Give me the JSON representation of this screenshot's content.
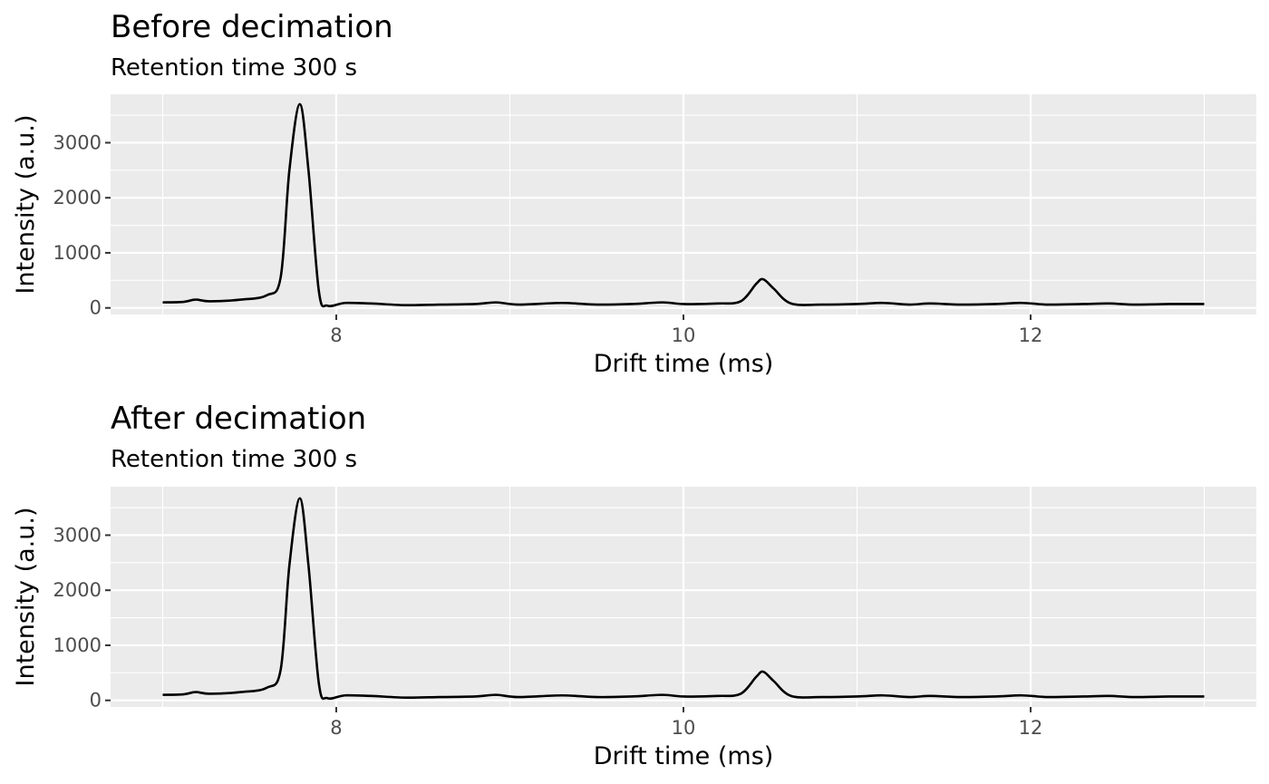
{
  "chart_data": [
    {
      "type": "line",
      "title": "Before decimation",
      "subtitle": "Retention time 300 s",
      "xlabel": "Drift time (ms)",
      "ylabel": "Intensity (a.u.)",
      "xlim": [
        6.7,
        13.3
      ],
      "ylim": [
        -120,
        3880
      ],
      "x_ticks": [
        8,
        10,
        12
      ],
      "y_ticks": [
        0,
        1000,
        2000,
        3000
      ],
      "x_tick_labels": [
        "8",
        "10",
        "12"
      ],
      "y_tick_labels": [
        "0",
        "1000",
        "2000",
        "3000"
      ],
      "grid": true,
      "series": [
        {
          "color": "#000000",
          "x": [
            7.0,
            7.12,
            7.19,
            7.27,
            7.45,
            7.6,
            7.68,
            7.73,
            7.79,
            7.84,
            7.9,
            7.95,
            8.05,
            8.2,
            8.4,
            8.6,
            8.8,
            8.92,
            9.05,
            9.3,
            9.5,
            9.7,
            9.88,
            10.0,
            10.2,
            10.33,
            10.42,
            10.46,
            10.52,
            10.62,
            10.8,
            11.0,
            11.15,
            11.3,
            11.42,
            11.6,
            11.8,
            11.95,
            12.1,
            12.3,
            12.45,
            12.6,
            12.8,
            13.0
          ],
          "y": [
            100,
            110,
            150,
            120,
            150,
            230,
            560,
            2500,
            3700,
            2500,
            300,
            40,
            90,
            80,
            50,
            60,
            70,
            100,
            60,
            90,
            60,
            70,
            100,
            70,
            80,
            120,
            440,
            520,
            350,
            80,
            60,
            70,
            90,
            60,
            80,
            60,
            70,
            90,
            60,
            70,
            80,
            60,
            70,
            70
          ]
        }
      ]
    },
    {
      "type": "line",
      "title": "After decimation",
      "subtitle": "Retention time 300 s",
      "xlabel": "Drift time (ms)",
      "ylabel": "Intensity (a.u.)",
      "xlim": [
        6.7,
        13.3
      ],
      "ylim": [
        -120,
        3880
      ],
      "x_ticks": [
        8,
        10,
        12
      ],
      "y_ticks": [
        0,
        1000,
        2000,
        3000
      ],
      "x_tick_labels": [
        "8",
        "10",
        "12"
      ],
      "y_tick_labels": [
        "0",
        "1000",
        "2000",
        "3000"
      ],
      "grid": true,
      "series": [
        {
          "color": "#000000",
          "x": [
            7.0,
            7.12,
            7.19,
            7.27,
            7.45,
            7.6,
            7.68,
            7.73,
            7.79,
            7.84,
            7.9,
            7.95,
            8.05,
            8.2,
            8.4,
            8.6,
            8.8,
            8.92,
            9.05,
            9.3,
            9.5,
            9.7,
            9.88,
            10.0,
            10.2,
            10.33,
            10.42,
            10.46,
            10.52,
            10.62,
            10.8,
            11.0,
            11.15,
            11.3,
            11.42,
            11.6,
            11.8,
            11.95,
            12.1,
            12.3,
            12.45,
            12.6,
            12.8,
            13.0
          ],
          "y": [
            100,
            110,
            150,
            120,
            150,
            230,
            560,
            2450,
            3670,
            2450,
            300,
            40,
            90,
            80,
            50,
            60,
            70,
            100,
            60,
            90,
            60,
            70,
            100,
            70,
            80,
            120,
            430,
            520,
            350,
            80,
            60,
            70,
            90,
            60,
            80,
            60,
            70,
            90,
            60,
            70,
            80,
            60,
            70,
            70
          ]
        }
      ]
    }
  ]
}
